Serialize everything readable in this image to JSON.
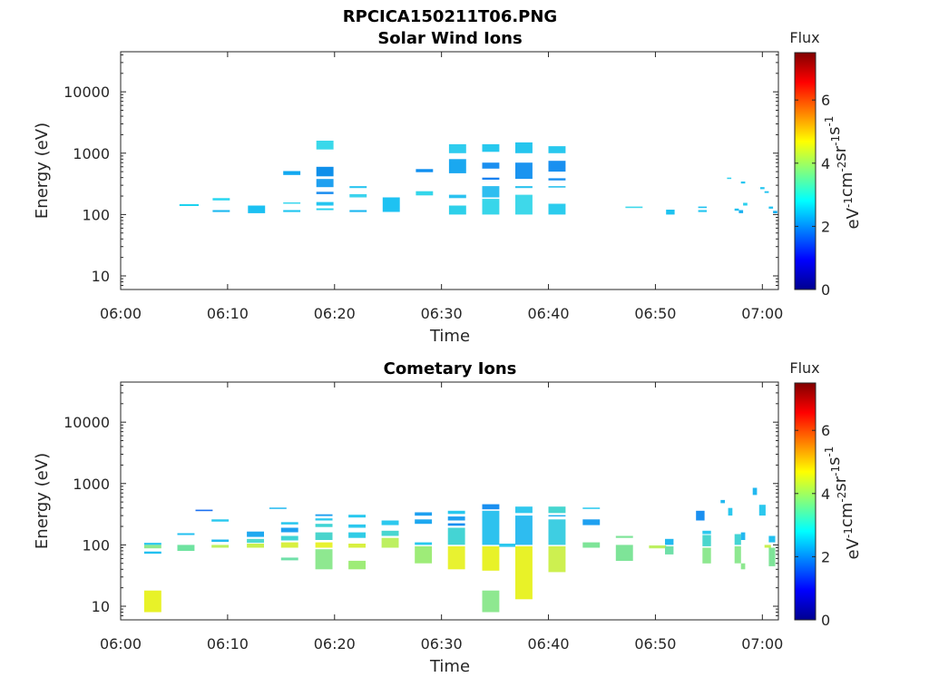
{
  "figure_title": "RPCICA150211T06.PNG",
  "chart_data": [
    {
      "type": "heatmap",
      "title": "Solar Wind Ions",
      "xlabel": "Time",
      "ylabel": "Energy (eV)",
      "x_ticks": [
        "06:00",
        "06:10",
        "06:20",
        "06:30",
        "06:40",
        "06:50",
        "07:00"
      ],
      "xlim_minutes": [
        0,
        61.5
      ],
      "y_scale": "log",
      "ylim": [
        6,
        45000
      ],
      "y_ticks": [
        {
          "v": 10,
          "label": "10"
        },
        {
          "v": 100,
          "label": "100"
        },
        {
          "v": 1000,
          "label": "1000"
        },
        {
          "v": 10000,
          "label": "10000"
        }
      ],
      "colorbar": {
        "label": "Flux",
        "unit_base": [
          "eV",
          "cm",
          "sr",
          "s"
        ],
        "unit_exp": [
          "-1",
          "-2",
          "-1",
          "-1"
        ],
        "range": [
          0,
          7.5
        ],
        "ticks": [
          "0",
          "2",
          "4",
          "6"
        ]
      },
      "grid": false,
      "cells": [
        [
          5.5,
          7.3,
          138,
          148,
          "#1ed3ef"
        ],
        [
          8.6,
          10.2,
          170,
          185,
          "#28d6f0"
        ],
        [
          8.6,
          10.2,
          110,
          118,
          "#1bb8f0"
        ],
        [
          11.9,
          13.5,
          105,
          140,
          "#1bc0f2"
        ],
        [
          15.2,
          16.8,
          440,
          510,
          "#12a8f0"
        ],
        [
          15.2,
          16.8,
          150,
          158,
          "#3ad7ee"
        ],
        [
          15.2,
          16.8,
          110,
          118,
          "#1ec5f0"
        ],
        [
          18.3,
          19.9,
          1150,
          1600,
          "#3ad8ea"
        ],
        [
          18.3,
          19.9,
          420,
          600,
          "#0f8fea"
        ],
        [
          18.3,
          19.9,
          280,
          380,
          "#1fa0f0"
        ],
        [
          18.3,
          19.9,
          215,
          235,
          "#1e8ff0"
        ],
        [
          18.3,
          19.9,
          140,
          160,
          "#26c5f0"
        ],
        [
          18.3,
          19.9,
          118,
          126,
          "#22d0ee"
        ],
        [
          21.4,
          23.0,
          270,
          290,
          "#2bc5f0"
        ],
        [
          21.4,
          23.0,
          190,
          215,
          "#3bd3ee"
        ],
        [
          21.4,
          23.0,
          110,
          118,
          "#1ab6f0"
        ],
        [
          24.5,
          26.1,
          110,
          190,
          "#1ec2f2"
        ],
        [
          27.6,
          29.2,
          490,
          550,
          "#0f8ff0"
        ],
        [
          27.6,
          29.2,
          205,
          240,
          "#34d6ea"
        ],
        [
          30.7,
          32.3,
          1000,
          1400,
          "#2fccee"
        ],
        [
          30.7,
          32.3,
          470,
          800,
          "#1aa8f0"
        ],
        [
          30.7,
          32.3,
          185,
          210,
          "#2bc2f0"
        ],
        [
          30.7,
          32.3,
          100,
          140,
          "#2ed0ea"
        ],
        [
          33.8,
          35.4,
          1050,
          1400,
          "#27c8ee"
        ],
        [
          33.8,
          35.4,
          560,
          700,
          "#1a8ff0"
        ],
        [
          33.8,
          35.4,
          370,
          400,
          "#1880f0"
        ],
        [
          33.8,
          35.4,
          190,
          290,
          "#2ebef0"
        ],
        [
          33.8,
          35.4,
          100,
          180,
          "#38d6ea"
        ],
        [
          36.9,
          38.5,
          1000,
          1500,
          "#25c5ee"
        ],
        [
          36.9,
          38.5,
          380,
          700,
          "#1a94f0"
        ],
        [
          36.9,
          38.5,
          270,
          290,
          "#2bc2ee"
        ],
        [
          36.9,
          38.5,
          100,
          210,
          "#3ed8ea"
        ],
        [
          40.0,
          41.6,
          1000,
          1300,
          "#28c8ee"
        ],
        [
          40.0,
          41.6,
          500,
          750,
          "#1a90f0"
        ],
        [
          40.0,
          41.6,
          360,
          390,
          "#1a8ff0"
        ],
        [
          40.0,
          41.6,
          275,
          290,
          "#2bc2ee"
        ],
        [
          40.0,
          41.6,
          100,
          150,
          "#2cccee"
        ],
        [
          47.2,
          48.8,
          128,
          135,
          "#3dd8ea"
        ],
        [
          51.0,
          51.8,
          100,
          120,
          "#1ec2f0"
        ],
        [
          54.0,
          54.8,
          110,
          118,
          "#22c5f0"
        ],
        [
          54.0,
          54.8,
          128,
          135,
          "#1ec2f0"
        ],
        [
          56.7,
          57.1,
          380,
          400,
          "#2bd0ee"
        ],
        [
          57.4,
          57.8,
          115,
          125,
          "#1ec2f0"
        ],
        [
          57.8,
          58.2,
          105,
          118,
          "#1bb0f0"
        ],
        [
          58.0,
          58.4,
          320,
          345,
          "#22c5f0"
        ],
        [
          58.2,
          58.6,
          140,
          155,
          "#2bd0ee"
        ],
        [
          59.8,
          60.2,
          260,
          280,
          "#22c5f0"
        ],
        [
          60.2,
          60.6,
          225,
          240,
          "#1ec2f0"
        ],
        [
          60.6,
          61.0,
          125,
          135,
          "#1ec2f0"
        ],
        [
          61.0,
          61.4,
          105,
          115,
          "#1bb0f0"
        ]
      ]
    },
    {
      "type": "heatmap",
      "title": "Cometary Ions",
      "xlabel": "Time",
      "ylabel": "Energy (eV)",
      "x_ticks": [
        "06:00",
        "06:10",
        "06:20",
        "06:30",
        "06:40",
        "06:50",
        "07:00"
      ],
      "xlim_minutes": [
        0,
        61.5
      ],
      "y_scale": "log",
      "ylim": [
        6,
        45000
      ],
      "y_ticks": [
        {
          "v": 10,
          "label": "10"
        },
        {
          "v": 100,
          "label": "100"
        },
        {
          "v": 1000,
          "label": "1000"
        },
        {
          "v": 10000,
          "label": "10000"
        }
      ],
      "colorbar": {
        "label": "Flux",
        "unit_base": [
          "eV",
          "cm",
          "sr",
          "s"
        ],
        "unit_exp": [
          "-1",
          "-2",
          "-1",
          "-1"
        ],
        "range": [
          0,
          7.5
        ],
        "ticks": [
          "0",
          "2",
          "4",
          "6"
        ]
      },
      "grid": false,
      "cells": [
        [
          2.2,
          3.8,
          100,
          108,
          "#28c8ee"
        ],
        [
          2.2,
          3.8,
          88,
          100,
          "#8fe890"
        ],
        [
          2.2,
          3.8,
          72,
          78,
          "#22c0f0"
        ],
        [
          2.2,
          3.8,
          8,
          18,
          "#e8f228"
        ],
        [
          5.3,
          6.9,
          145,
          155,
          "#22c0f0"
        ],
        [
          5.3,
          6.9,
          80,
          100,
          "#6fe3a0"
        ],
        [
          7.0,
          8.6,
          355,
          375,
          "#1a6ff0"
        ],
        [
          8.5,
          10.1,
          240,
          260,
          "#28c8ee"
        ],
        [
          8.5,
          10.1,
          112,
          122,
          "#22b8f0"
        ],
        [
          8.5,
          10.1,
          90,
          100,
          "#bdf060"
        ],
        [
          11.8,
          13.4,
          135,
          165,
          "#1ea8f0"
        ],
        [
          11.8,
          13.4,
          108,
          125,
          "#4ed8d0"
        ],
        [
          11.8,
          13.4,
          90,
          105,
          "#c8f050"
        ],
        [
          13.9,
          15.5,
          385,
          405,
          "#22b8f0"
        ],
        [
          15.0,
          16.6,
          215,
          235,
          "#2cc8ee"
        ],
        [
          15.0,
          16.6,
          160,
          190,
          "#1ea0f0"
        ],
        [
          15.0,
          16.6,
          118,
          140,
          "#40d4d4"
        ],
        [
          15.0,
          16.6,
          90,
          110,
          "#d8f040"
        ],
        [
          15.0,
          16.6,
          56,
          62,
          "#6fe0a8"
        ],
        [
          18.2,
          19.8,
          295,
          315,
          "#1e9ff0"
        ],
        [
          18.2,
          19.8,
          250,
          270,
          "#28c8ee"
        ],
        [
          18.2,
          19.8,
          195,
          220,
          "#40d4d4"
        ],
        [
          18.2,
          19.8,
          120,
          160,
          "#4ad4cc"
        ],
        [
          18.2,
          19.8,
          90,
          110,
          "#e8f230"
        ],
        [
          18.2,
          19.8,
          40,
          85,
          "#8ee890"
        ],
        [
          21.3,
          22.9,
          280,
          310,
          "#28c8ee"
        ],
        [
          21.3,
          22.9,
          190,
          215,
          "#2cc8ee"
        ],
        [
          21.3,
          22.9,
          130,
          160,
          "#30cce6"
        ],
        [
          21.3,
          22.9,
          90,
          105,
          "#d8f040"
        ],
        [
          21.3,
          22.9,
          40,
          55,
          "#9eec78"
        ],
        [
          24.4,
          26.0,
          210,
          250,
          "#2cc8ee"
        ],
        [
          24.4,
          26.0,
          140,
          170,
          "#48d6d0"
        ],
        [
          24.4,
          26.0,
          90,
          130,
          "#bdf060"
        ],
        [
          27.5,
          29.1,
          300,
          340,
          "#1ea0f0"
        ],
        [
          27.5,
          29.1,
          220,
          260,
          "#1ea8f0"
        ],
        [
          27.5,
          29.1,
          100,
          110,
          "#28c8ee"
        ],
        [
          27.5,
          29.1,
          50,
          95,
          "#9eec78"
        ],
        [
          30.6,
          32.2,
          320,
          360,
          "#28c8ee"
        ],
        [
          30.6,
          32.2,
          250,
          290,
          "#1e9ff0"
        ],
        [
          30.6,
          32.2,
          205,
          225,
          "#1a8ff0"
        ],
        [
          30.6,
          32.2,
          100,
          190,
          "#44d4d4"
        ],
        [
          30.6,
          32.2,
          40,
          95,
          "#e8f230"
        ],
        [
          33.8,
          35.4,
          380,
          460,
          "#1a8ff0"
        ],
        [
          33.8,
          35.4,
          100,
          360,
          "#2ec2ee"
        ],
        [
          33.8,
          35.4,
          38,
          95,
          "#e8f228"
        ],
        [
          33.8,
          35.4,
          8,
          18,
          "#8ee890"
        ],
        [
          35.4,
          36.9,
          93,
          105,
          "#2cc8ee"
        ],
        [
          36.9,
          38.5,
          330,
          420,
          "#30c8ee"
        ],
        [
          36.9,
          38.5,
          100,
          300,
          "#2ebcf0"
        ],
        [
          36.9,
          38.5,
          13,
          95,
          "#e8f228"
        ],
        [
          40.0,
          41.6,
          330,
          420,
          "#46d6d0"
        ],
        [
          40.0,
          41.6,
          290,
          305,
          "#22b0f0"
        ],
        [
          40.0,
          41.6,
          100,
          260,
          "#3ecee2"
        ],
        [
          40.0,
          41.6,
          36,
          95,
          "#cdf050"
        ],
        [
          43.2,
          44.8,
          385,
          405,
          "#28c8ee"
        ],
        [
          43.2,
          44.8,
          210,
          260,
          "#1ea0f0"
        ],
        [
          43.2,
          44.8,
          90,
          110,
          "#7ee498"
        ],
        [
          46.3,
          47.9,
          130,
          140,
          "#7ee498"
        ],
        [
          46.3,
          47.9,
          55,
          100,
          "#7ee498"
        ],
        [
          49.4,
          51.0,
          88,
          98,
          "#bdf060"
        ],
        [
          50.9,
          51.7,
          100,
          125,
          "#22b8f0"
        ],
        [
          50.9,
          51.7,
          70,
          95,
          "#6fe0a8"
        ],
        [
          53.8,
          54.6,
          250,
          360,
          "#1a8ff0"
        ],
        [
          54.4,
          55.2,
          150,
          170,
          "#2cc8ee"
        ],
        [
          54.4,
          55.2,
          95,
          145,
          "#4ad6cc"
        ],
        [
          54.4,
          55.2,
          50,
          90,
          "#8ee890"
        ],
        [
          56.1,
          56.5,
          480,
          540,
          "#22b8f0"
        ],
        [
          56.8,
          57.2,
          300,
          400,
          "#2cc8ee"
        ],
        [
          57.4,
          58.0,
          100,
          150,
          "#44d4d4"
        ],
        [
          57.4,
          58.0,
          50,
          95,
          "#8ee890"
        ],
        [
          58.0,
          58.4,
          120,
          160,
          "#22b8f0"
        ],
        [
          58.0,
          58.4,
          40,
          50,
          "#8ee890"
        ],
        [
          59.1,
          59.5,
          650,
          850,
          "#22b8f0"
        ],
        [
          59.7,
          60.3,
          300,
          450,
          "#2cc8ee"
        ],
        [
          60.2,
          60.8,
          90,
          100,
          "#c8f050"
        ],
        [
          60.6,
          61.2,
          110,
          140,
          "#22c0f0"
        ],
        [
          60.6,
          61.2,
          45,
          90,
          "#7ee498"
        ]
      ]
    }
  ]
}
